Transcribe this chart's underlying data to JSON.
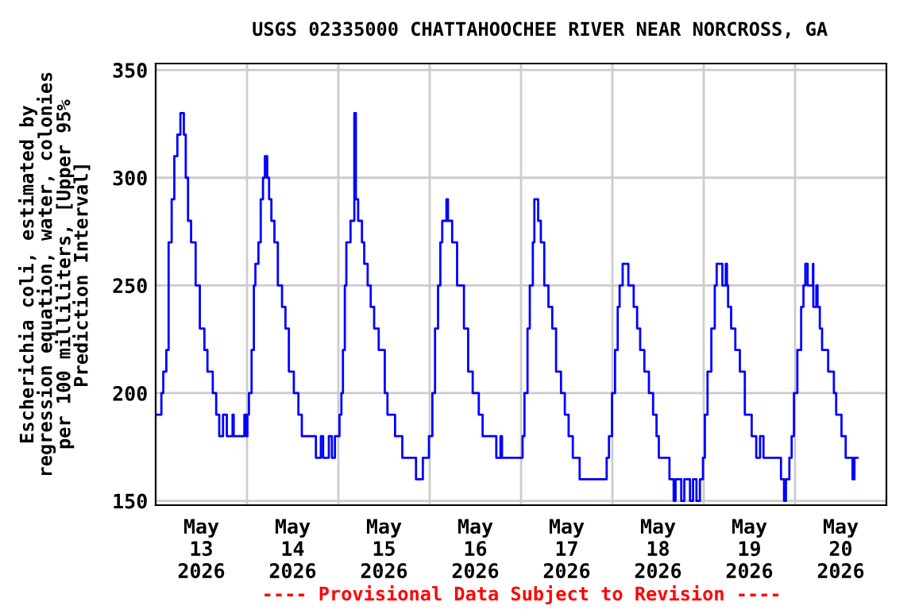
{
  "chart_data": {
    "type": "step",
    "title": "USGS 02335000 CHATTAHOOCHEE RIVER NEAR NORCROSS, GA",
    "ylabel": "Escherichia coli, estimated by\nregression equation, water, colonies\nper 100 milliliters, [Upper 95%\nPrediction Interval]",
    "annotations": [
      "---- Provisional Data Subject to Revision ----"
    ],
    "xlim": [
      "2026-05-13",
      "2026-05-21"
    ],
    "xticks": [
      {
        "value": "2026-05-13T12:00",
        "label": "May\n13\n2026"
      },
      {
        "value": "2026-05-14",
        "label": null
      },
      {
        "value": "2026-05-14T12:00",
        "label": "May\n14\n2026"
      },
      {
        "value": "2026-05-15",
        "label": null
      },
      {
        "value": "2026-05-15T12:00",
        "label": "May\n15\n2026"
      },
      {
        "value": "2026-05-16",
        "label": null
      },
      {
        "value": "2026-05-16T12:00",
        "label": "May\n16\n2026"
      },
      {
        "value": "2026-05-17",
        "label": null
      },
      {
        "value": "2026-05-17T12:00",
        "label": "May\n17\n2026"
      },
      {
        "value": "2026-05-18",
        "label": null
      },
      {
        "value": "2026-05-18T12:00",
        "label": "May\n18\n2026"
      },
      {
        "value": "2026-05-19",
        "label": null
      },
      {
        "value": "2026-05-19T12:00",
        "label": "May\n19\n2026"
      },
      {
        "value": "2026-05-20",
        "label": null
      },
      {
        "value": "2026-05-20T12:00",
        "label": "May\n20\n2026"
      }
    ],
    "ylim": [
      148,
      353
    ],
    "yticks": [
      150,
      200,
      250,
      300,
      350
    ],
    "grid": true,
    "series": [
      {
        "color": "#0000ff",
        "x": [
          "2026-05-13T00:18",
          "2026-05-13T01:30",
          "2026-05-13T02:00",
          "2026-05-13T02:48",
          "2026-05-13T03:24",
          "2026-05-13T04:12",
          "2026-05-13T04:54",
          "2026-05-13T05:42",
          "2026-05-13T06:30",
          "2026-05-13T06:54",
          "2026-05-13T07:24",
          "2026-05-13T07:54",
          "2026-05-13T08:30",
          "2026-05-13T09:18",
          "2026-05-13T10:30",
          "2026-05-13T11:36",
          "2026-05-13T12:48",
          "2026-05-13T13:36",
          "2026-05-13T15:00",
          "2026-05-13T15:54",
          "2026-05-13T16:42",
          "2026-05-13T17:42",
          "2026-05-13T18:42",
          "2026-05-13T20:12",
          "2026-05-13T20:30",
          "2026-05-13T22:42",
          "2026-05-13T23:18",
          "2026-05-13T23:48",
          "2026-05-14T00:06",
          "2026-05-14T00:30",
          "2026-05-14T01:12",
          "2026-05-14T01:48",
          "2026-05-14T02:12",
          "2026-05-14T03:00",
          "2026-05-14T03:36",
          "2026-05-14T04:12",
          "2026-05-14T04:42",
          "2026-05-14T05:18",
          "2026-05-14T05:48",
          "2026-05-14T06:24",
          "2026-05-14T07:12",
          "2026-05-14T08:06",
          "2026-05-14T09:12",
          "2026-05-14T10:06",
          "2026-05-14T11:00",
          "2026-05-14T12:18",
          "2026-05-14T13:30",
          "2026-05-14T14:24",
          "2026-05-14T17:42",
          "2026-05-14T18:06",
          "2026-05-14T19:24",
          "2026-05-14T20:00",
          "2026-05-14T21:30",
          "2026-05-14T22:18",
          "2026-05-14T23:06",
          "2026-05-15T00:18",
          "2026-05-15T00:48",
          "2026-05-15T01:12",
          "2026-05-15T01:42",
          "2026-05-15T02:06",
          "2026-05-15T03:12",
          "2026-05-15T04:12",
          "2026-05-15T04:36",
          "2026-05-15T05:12",
          "2026-05-15T06:12",
          "2026-05-15T06:48",
          "2026-05-15T07:42",
          "2026-05-15T08:30",
          "2026-05-15T09:24",
          "2026-05-15T10:36",
          "2026-05-15T12:12",
          "2026-05-15T12:54",
          "2026-05-15T14:54",
          "2026-05-15T16:48",
          "2026-05-15T19:54",
          "2026-05-15T20:24",
          "2026-05-15T22:06",
          "2026-05-15T22:12",
          "2026-05-15T23:48",
          "2026-05-16T00:42",
          "2026-05-16T01:24",
          "2026-05-16T02:12",
          "2026-05-16T02:48",
          "2026-05-16T03:18",
          "2026-05-16T04:24",
          "2026-05-16T04:48",
          "2026-05-16T05:54",
          "2026-05-16T07:12",
          "2026-05-16T09:00",
          "2026-05-16T10:06",
          "2026-05-16T11:18",
          "2026-05-16T12:54",
          "2026-05-16T13:54",
          "2026-05-16T16:18",
          "2026-05-16T17:30",
          "2026-05-16T18:36",
          "2026-05-16T19:00",
          "2026-05-16T23:42",
          "2026-05-17T00:24",
          "2026-05-17T00:54",
          "2026-05-17T01:42",
          "2026-05-17T02:18",
          "2026-05-17T03:06",
          "2026-05-17T03:30",
          "2026-05-17T04:30",
          "2026-05-17T05:12",
          "2026-05-17T06:06",
          "2026-05-17T07:12",
          "2026-05-17T08:12",
          "2026-05-17T09:12",
          "2026-05-17T10:30",
          "2026-05-17T11:30",
          "2026-05-17T12:30",
          "2026-05-17T13:36",
          "2026-05-17T15:24",
          "2026-05-17T21:42",
          "2026-05-17T22:30",
          "2026-05-17T23:06",
          "2026-05-17T23:54",
          "2026-05-18T00:42",
          "2026-05-18T01:24",
          "2026-05-18T01:54",
          "2026-05-18T02:42",
          "2026-05-18T03:42",
          "2026-05-18T04:12",
          "2026-05-18T05:36",
          "2026-05-18T06:30",
          "2026-05-18T07:18",
          "2026-05-18T08:24",
          "2026-05-18T09:36",
          "2026-05-18T10:42",
          "2026-05-18T11:36",
          "2026-05-18T12:12",
          "2026-05-18T15:00",
          "2026-05-18T16:06",
          "2026-05-18T16:36",
          "2026-05-18T18:06",
          "2026-05-18T18:54",
          "2026-05-18T20:24",
          "2026-05-18T21:12",
          "2026-05-18T22:06",
          "2026-05-18T23:00",
          "2026-05-18T23:48",
          "2026-05-19T00:18",
          "2026-05-19T01:00",
          "2026-05-19T02:00",
          "2026-05-19T02:54",
          "2026-05-19T03:24",
          "2026-05-19T04:54",
          "2026-05-19T05:48",
          "2026-05-19T06:06",
          "2026-05-19T06:24",
          "2026-05-19T07:12",
          "2026-05-19T08:18",
          "2026-05-19T09:30",
          "2026-05-19T10:48",
          "2026-05-19T12:36",
          "2026-05-19T13:48",
          "2026-05-19T14:48",
          "2026-05-19T15:42",
          "2026-05-19T20:18",
          "2026-05-19T21:06",
          "2026-05-19T21:36",
          "2026-05-19T22:30",
          "2026-05-19T23:06",
          "2026-05-19T23:42",
          "2026-05-20T00:36",
          "2026-05-20T01:36",
          "2026-05-20T02:12",
          "2026-05-20T02:42",
          "2026-05-20T03:18",
          "2026-05-20T04:42",
          "2026-05-20T04:48",
          "2026-05-20T05:36",
          "2026-05-20T05:54",
          "2026-05-20T06:30",
          "2026-05-20T07:06",
          "2026-05-20T08:42",
          "2026-05-20T10:12",
          "2026-05-20T10:48",
          "2026-05-20T12:12",
          "2026-05-20T13:18",
          "2026-05-20T14:30",
          "2026-05-20T15:06",
          "2026-05-20T15:36",
          "2026-05-20T16:24"
        ],
        "values": [
          190,
          200,
          210,
          220,
          270,
          290,
          310,
          320,
          330,
          330,
          320,
          300,
          280,
          270,
          250,
          230,
          220,
          210,
          200,
          190,
          180,
          190,
          180,
          190,
          180,
          180,
          190,
          180,
          190,
          200,
          220,
          250,
          260,
          270,
          290,
          300,
          310,
          300,
          290,
          280,
          270,
          250,
          240,
          230,
          210,
          200,
          190,
          180,
          180,
          170,
          180,
          170,
          180,
          170,
          180,
          190,
          200,
          220,
          250,
          270,
          280,
          330,
          290,
          280,
          270,
          260,
          250,
          240,
          230,
          220,
          200,
          190,
          180,
          170,
          170,
          160,
          160,
          170,
          180,
          200,
          230,
          250,
          270,
          280,
          290,
          280,
          270,
          250,
          230,
          210,
          200,
          190,
          180,
          180,
          170,
          180,
          170,
          170,
          180,
          200,
          230,
          250,
          270,
          290,
          280,
          270,
          250,
          240,
          230,
          210,
          200,
          190,
          180,
          170,
          160,
          160,
          170,
          180,
          200,
          220,
          240,
          250,
          260,
          260,
          250,
          240,
          230,
          220,
          210,
          200,
          190,
          180,
          170,
          160,
          150,
          160,
          150,
          160,
          150,
          160,
          150,
          160,
          170,
          190,
          210,
          230,
          250,
          260,
          250,
          260,
          250,
          240,
          230,
          220,
          210,
          190,
          180,
          170,
          180,
          170,
          160,
          150,
          160,
          170,
          180,
          200,
          220,
          240,
          250,
          260,
          250,
          260,
          240,
          250,
          240,
          230,
          220,
          210,
          200,
          190,
          180,
          170,
          170,
          160,
          170,
          170
        ]
      }
    ]
  }
}
